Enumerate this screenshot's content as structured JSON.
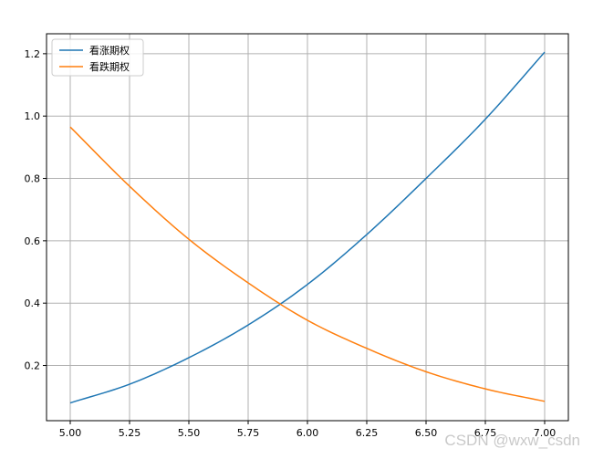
{
  "chart_data": {
    "type": "line",
    "title": "",
    "xlabel": "",
    "ylabel": "",
    "xlim": [
      4.9,
      7.1
    ],
    "ylim": [
      0.023,
      1.264
    ],
    "grid": true,
    "legend_position": "top-left",
    "xticks": [
      5.0,
      5.25,
      5.5,
      5.75,
      6.0,
      6.25,
      6.5,
      6.75,
      7.0
    ],
    "xtick_labels": [
      "5.00",
      "5.25",
      "5.50",
      "5.75",
      "6.00",
      "6.25",
      "6.50",
      "6.75",
      "7.00"
    ],
    "yticks": [
      0.2,
      0.4,
      0.6,
      0.8,
      1.0,
      1.2
    ],
    "ytick_labels": [
      "0.2",
      "0.4",
      "0.6",
      "0.8",
      "1.0",
      "1.2"
    ],
    "x": [
      5.0,
      5.25,
      5.5,
      5.75,
      6.0,
      6.25,
      6.5,
      6.75,
      7.0
    ],
    "series": [
      {
        "name": "看涨期权",
        "color": "#1f77b4",
        "values": [
          0.08,
          0.14,
          0.225,
          0.33,
          0.46,
          0.62,
          0.8,
          0.99,
          1.205
        ]
      },
      {
        "name": "看跌期权",
        "color": "#ff7f0e",
        "values": [
          0.965,
          0.775,
          0.605,
          0.465,
          0.345,
          0.255,
          0.18,
          0.125,
          0.085
        ]
      }
    ]
  },
  "watermark": "CSDN @wxw_csdn"
}
